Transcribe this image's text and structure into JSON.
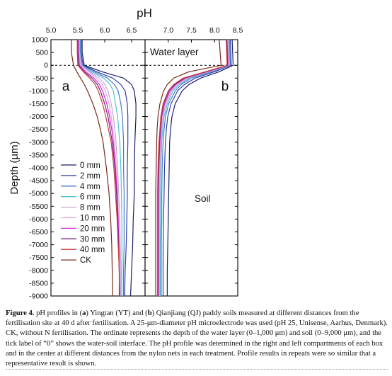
{
  "chart_data": [
    {
      "type": "line",
      "panel_label": "a",
      "xlabel": "pH",
      "ylabel": "Depth (µm)",
      "xlim": [
        5.0,
        6.75
      ],
      "ylim": [
        -9000,
        1000
      ],
      "x_ticks": [
        "5.0",
        "5.5",
        "6.0",
        "6.5"
      ],
      "y_ticks": [
        "1000",
        "500",
        "0",
        "-500",
        "-1000",
        "-1500",
        "-2000",
        "-2500",
        "-3000",
        "-3500",
        "-4000",
        "-4500",
        "-5000",
        "-5500",
        "-6000",
        "-6500",
        "-7000",
        "-7500",
        "-8000",
        "-8500",
        "-9000"
      ],
      "interface_line": 0,
      "depths": [
        1000,
        500,
        0,
        -250,
        -500,
        -750,
        -1000,
        -1500,
        -2000,
        -2500,
        -3000,
        -4000,
        -5000,
        -6000,
        -7000,
        -8000,
        -9000
      ],
      "series": [
        {
          "name": "0 mm",
          "color": "#1a1f6e",
          "values": [
            5.58,
            5.58,
            5.62,
            5.95,
            6.35,
            6.5,
            6.55,
            6.58,
            6.58,
            6.57,
            6.56,
            6.55,
            6.55,
            6.53,
            6.52,
            6.5,
            6.48
          ]
        },
        {
          "name": "2 mm",
          "color": "#3340a8",
          "values": [
            5.56,
            5.56,
            5.6,
            5.85,
            6.15,
            6.3,
            6.38,
            6.42,
            6.43,
            6.43,
            6.43,
            6.42,
            6.42,
            6.41,
            6.4,
            6.38,
            6.37
          ]
        },
        {
          "name": "4 mm",
          "color": "#4a7cc4",
          "values": [
            5.55,
            5.55,
            5.58,
            5.8,
            6.05,
            6.18,
            6.25,
            6.3,
            6.33,
            6.34,
            6.35,
            6.35,
            6.36,
            6.36,
            6.36,
            6.35,
            6.35
          ]
        },
        {
          "name": "6 mm",
          "color": "#4fc4d4",
          "values": [
            5.54,
            5.54,
            5.57,
            5.75,
            5.98,
            6.1,
            6.16,
            6.2,
            6.24,
            6.26,
            6.28,
            6.3,
            6.31,
            6.32,
            6.32,
            6.32,
            6.32
          ]
        },
        {
          "name": "8 mm",
          "color": "#c6a8d8",
          "values": [
            5.53,
            5.53,
            5.56,
            5.72,
            5.9,
            6.0,
            6.06,
            6.12,
            6.16,
            6.19,
            6.21,
            6.24,
            6.26,
            6.28,
            6.29,
            6.3,
            6.3
          ]
        },
        {
          "name": "10 mm",
          "color": "#e8a6e4",
          "values": [
            5.52,
            5.52,
            5.55,
            5.7,
            5.85,
            5.95,
            6.01,
            6.08,
            6.12,
            6.15,
            6.18,
            6.22,
            6.24,
            6.26,
            6.27,
            6.28,
            6.28
          ]
        },
        {
          "name": "20 mm",
          "color": "#d22bd2",
          "values": [
            5.51,
            5.51,
            5.53,
            5.65,
            5.8,
            5.9,
            5.96,
            6.04,
            6.09,
            6.13,
            6.16,
            6.2,
            6.23,
            6.25,
            6.26,
            6.27,
            6.28
          ]
        },
        {
          "name": "30 mm",
          "color": "#7a1f86",
          "values": [
            5.5,
            5.5,
            5.52,
            5.62,
            5.76,
            5.86,
            5.92,
            6.0,
            6.06,
            6.1,
            6.14,
            6.19,
            6.22,
            6.24,
            6.26,
            6.27,
            6.28
          ]
        },
        {
          "name": "40 mm",
          "color": "#c84040",
          "values": [
            5.49,
            5.49,
            5.5,
            5.6,
            5.72,
            5.82,
            5.88,
            5.96,
            6.02,
            6.07,
            6.12,
            6.17,
            6.2,
            6.23,
            6.25,
            6.27,
            6.27
          ]
        },
        {
          "name": "CK",
          "color": "#7a2a1a",
          "values": [
            5.38,
            5.38,
            5.42,
            5.48,
            5.55,
            5.62,
            5.68,
            5.78,
            5.86,
            5.92,
            5.97,
            6.03,
            6.08,
            6.11,
            6.13,
            6.14,
            6.15
          ]
        }
      ]
    },
    {
      "type": "line",
      "panel_label": "b",
      "xlabel": "pH",
      "xlim": [
        6.5,
        8.5
      ],
      "ylim": [
        -9000,
        1000
      ],
      "x_ticks": [
        "7.0",
        "7.5",
        "8.0",
        "8.5"
      ],
      "interface_line": 0,
      "region_labels": {
        "upper": "Water layer",
        "lower": "Soil"
      },
      "depths": [
        1000,
        500,
        0,
        -250,
        -500,
        -750,
        -1000,
        -1500,
        -2000,
        -2500,
        -3000,
        -4000,
        -5000,
        -6000,
        -7000,
        -8000,
        -9000
      ],
      "series": [
        {
          "name": "0 mm",
          "color": "#1a1f6e",
          "values": [
            8.38,
            8.39,
            8.4,
            8.1,
            7.7,
            7.45,
            7.3,
            7.15,
            7.08,
            7.05,
            7.03,
            7.02,
            7.01,
            7.0,
            6.99,
            6.98,
            6.98
          ]
        },
        {
          "name": "2 mm",
          "color": "#3340a8",
          "values": [
            8.34,
            8.35,
            8.36,
            8.0,
            7.58,
            7.35,
            7.2,
            7.06,
            6.99,
            6.96,
            6.94,
            6.92,
            6.91,
            6.9,
            6.89,
            6.89,
            6.89
          ]
        },
        {
          "name": "4 mm",
          "color": "#4a7cc4",
          "values": [
            8.32,
            8.33,
            8.34,
            7.95,
            7.5,
            7.28,
            7.15,
            7.01,
            6.94,
            6.91,
            6.89,
            6.87,
            6.86,
            6.86,
            6.85,
            6.85,
            6.85
          ]
        },
        {
          "name": "6 mm",
          "color": "#4fc4d4",
          "values": [
            8.3,
            8.31,
            8.32,
            7.9,
            7.46,
            7.24,
            7.1,
            6.98,
            6.91,
            6.88,
            6.86,
            6.84,
            6.83,
            6.83,
            6.83,
            6.83,
            6.83
          ]
        },
        {
          "name": "8 mm",
          "color": "#c6a8d8",
          "values": [
            8.29,
            8.3,
            8.31,
            7.88,
            7.42,
            7.2,
            7.07,
            6.95,
            6.89,
            6.86,
            6.84,
            6.82,
            6.81,
            6.81,
            6.81,
            6.81,
            6.81
          ]
        },
        {
          "name": "10 mm",
          "color": "#e8a6e4",
          "values": [
            8.28,
            8.29,
            8.3,
            7.86,
            7.4,
            7.18,
            7.05,
            6.93,
            6.87,
            6.85,
            6.83,
            6.81,
            6.8,
            6.8,
            6.8,
            6.8,
            6.8
          ]
        },
        {
          "name": "20 mm",
          "color": "#d22bd2",
          "values": [
            8.27,
            8.28,
            8.29,
            7.84,
            7.37,
            7.16,
            7.03,
            6.92,
            6.86,
            6.84,
            6.82,
            6.8,
            6.79,
            6.79,
            6.79,
            6.79,
            6.79
          ]
        },
        {
          "name": "30 mm",
          "color": "#7a1f86",
          "values": [
            8.26,
            8.27,
            8.28,
            7.82,
            7.35,
            7.14,
            7.01,
            6.9,
            6.85,
            6.83,
            6.81,
            6.79,
            6.78,
            6.78,
            6.78,
            6.78,
            6.78
          ]
        },
        {
          "name": "40 mm",
          "color": "#c84040",
          "values": [
            8.25,
            8.26,
            8.27,
            7.8,
            7.32,
            7.12,
            7.0,
            6.89,
            6.84,
            6.82,
            6.8,
            6.78,
            6.77,
            6.77,
            6.77,
            6.77,
            6.77
          ]
        },
        {
          "name": "CK",
          "color": "#7a2a1a",
          "values": [
            8.1,
            8.12,
            8.14,
            7.45,
            7.12,
            6.98,
            6.9,
            6.82,
            6.78,
            6.76,
            6.75,
            6.74,
            6.73,
            6.73,
            6.73,
            6.73,
            6.73
          ]
        }
      ]
    }
  ],
  "caption": {
    "label": "Figure 4.",
    "segments": [
      {
        "t": "pH profiles in (",
        "b": false
      },
      {
        "t": "a",
        "b": true
      },
      {
        "t": ") Yingtan (YT) and (",
        "b": false
      },
      {
        "t": "b",
        "b": true
      },
      {
        "t": ") Qianjiang (QJ) paddy soils measured at different distances from the fertilisation site at 40 d after fertilisation. A 25-μm-diameter pH microelectrode was used (pH 25, Unisense, Aarhus, Denmark). CK, without N fertilisation. The ordinate represents the depth of the water layer (0–1,000 μm) and soil (0–9,000 μm), and the tick label of “0” shows the water-soil interface. The pH profile was determined in the right and left compartments of each box and in the center at different distances from the nylon nets in each treatment. Profile results in repeats were so similar that a representative result is shown.",
        "b": false
      }
    ]
  }
}
